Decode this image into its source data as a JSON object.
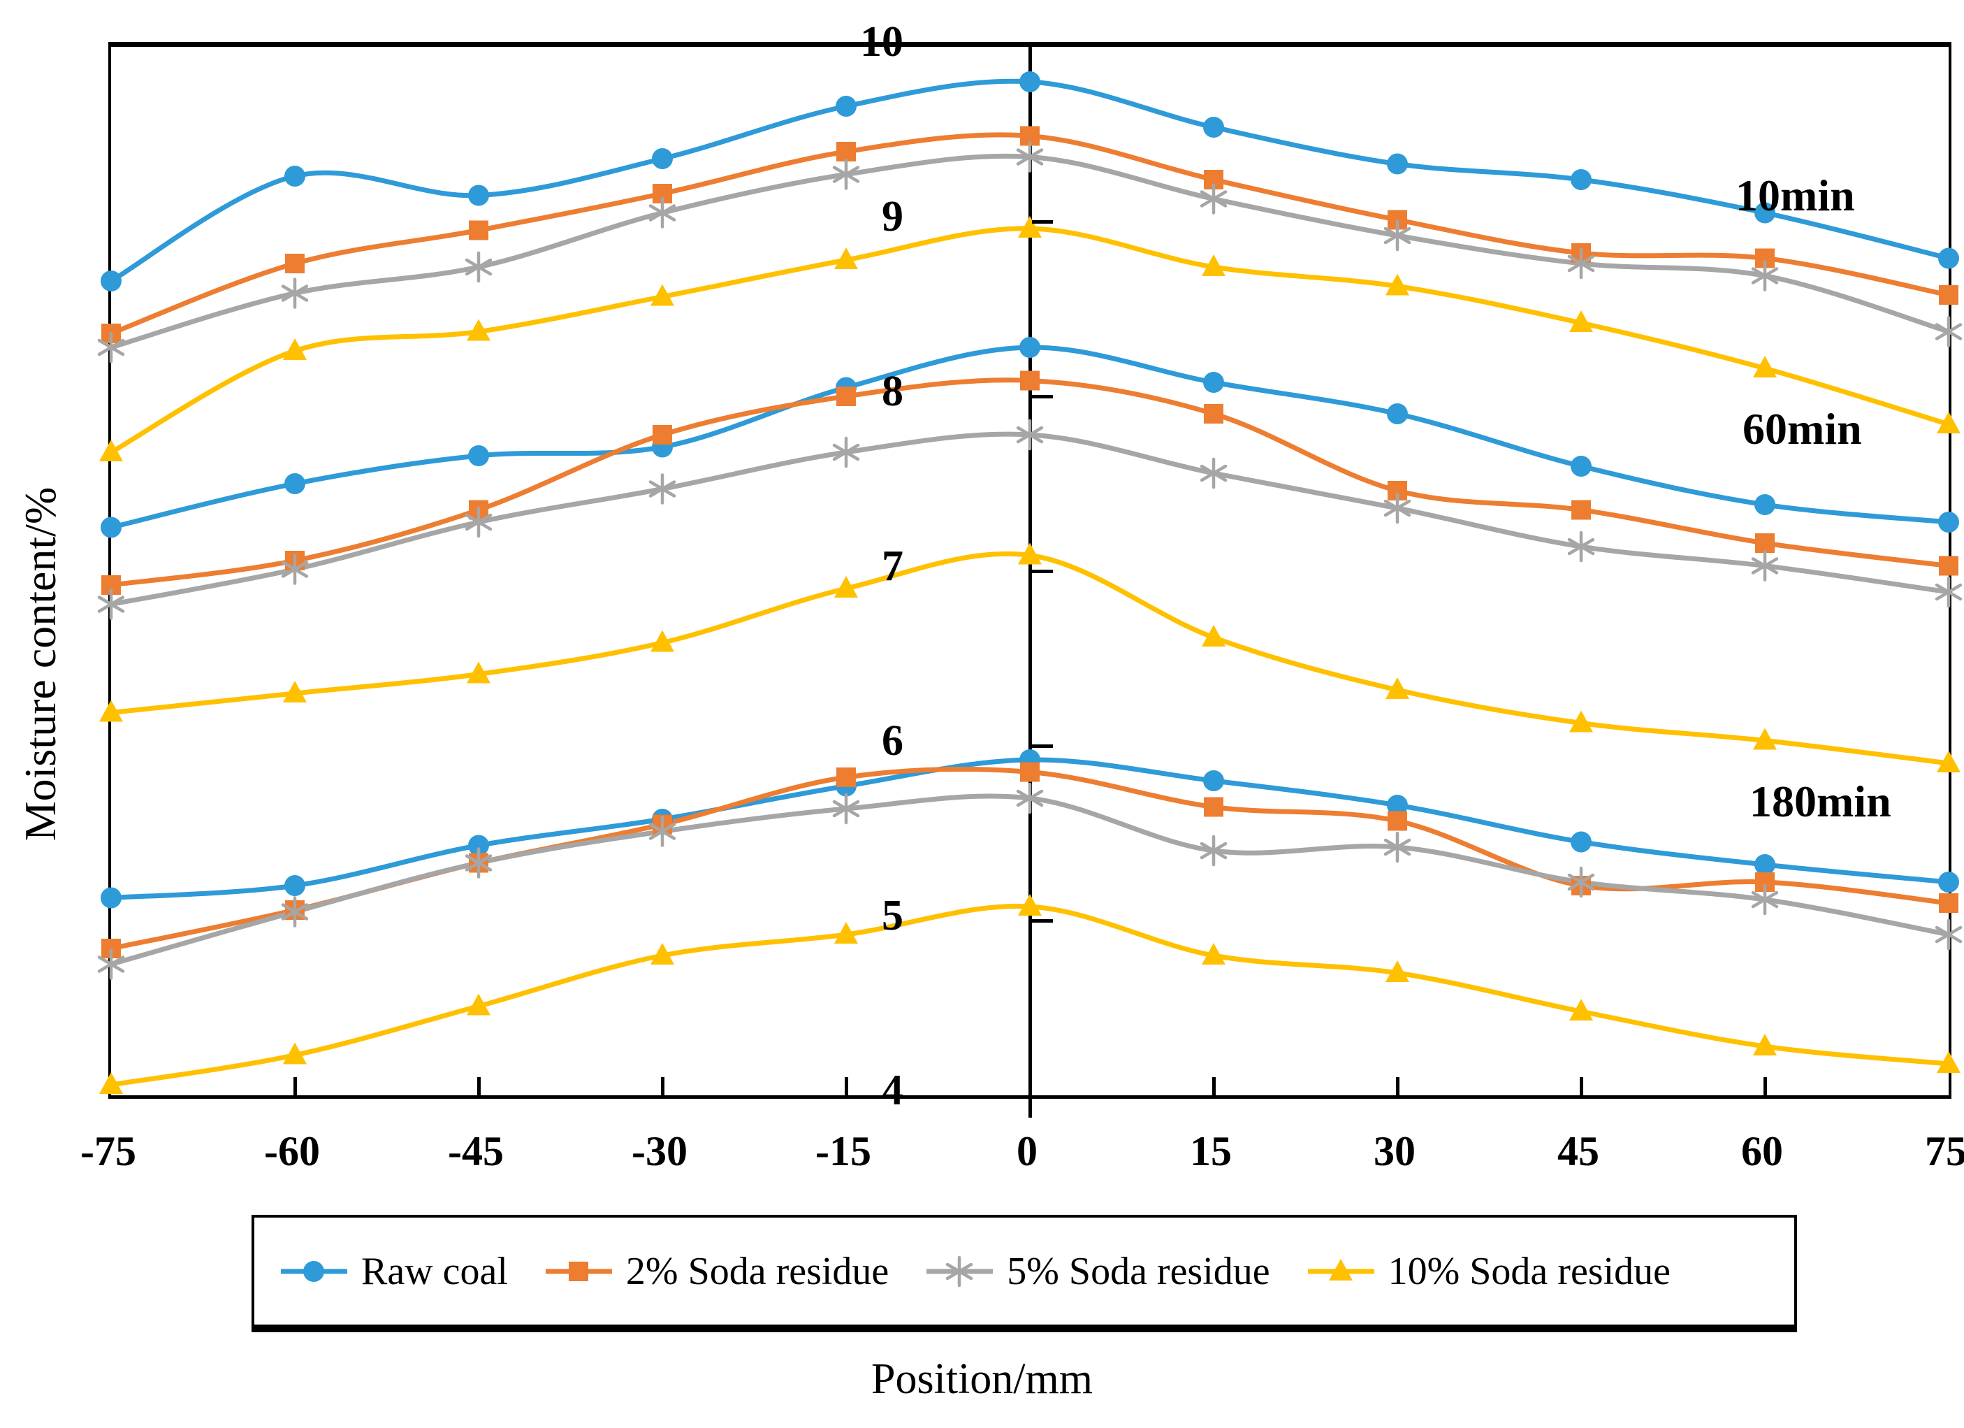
{
  "figure": {
    "background": "#ffffff"
  },
  "axes": {
    "y_tick_labels": [
      "10",
      "9",
      "8",
      "7",
      "6",
      "5",
      "4"
    ],
    "y_tick_values": [
      10,
      9,
      8,
      7,
      6,
      5,
      4
    ],
    "x_tick_labels": [
      "-75",
      "-60",
      "-45",
      "-30",
      "-15",
      "0",
      "15",
      "30",
      "45",
      "60",
      "75"
    ],
    "x_tick_values": [
      -75,
      -60,
      -45,
      -30,
      -15,
      0,
      15,
      30,
      45,
      60,
      75
    ]
  },
  "legend": [
    {
      "label": "Raw coal",
      "color": "#2e9ad8",
      "marker": "circle"
    },
    {
      "label": "2% Soda residue",
      "color": "#ed7d31",
      "marker": "square"
    },
    {
      "label": "5% Soda residue",
      "color": "#a6a6a6",
      "marker": "asterisk"
    },
    {
      "label": "10% Soda residue",
      "color": "#ffc000",
      "marker": "triangle"
    }
  ],
  "chart_data": {
    "type": "line",
    "xlabel": "Position/mm",
    "ylabel": "Moisture content/%",
    "xlim": [
      -75,
      75
    ],
    "ylim": [
      4,
      10
    ],
    "grid": false,
    "legend_position": "bottom",
    "x": [
      -75,
      -60,
      -45,
      -30,
      -15,
      0,
      15,
      30,
      45,
      60,
      75
    ],
    "groups": [
      {
        "label": "10min",
        "series": [
          {
            "name": "Raw coal",
            "color": "#2e9ad8",
            "marker": "circle",
            "values": [
              8.66,
              9.26,
              9.15,
              9.36,
              9.66,
              9.8,
              9.54,
              9.33,
              9.24,
              9.05,
              8.79
            ]
          },
          {
            "name": "2% Soda residue",
            "color": "#ed7d31",
            "marker": "square",
            "values": [
              8.36,
              8.76,
              8.95,
              9.16,
              9.4,
              9.49,
              9.24,
              9.01,
              8.82,
              8.79,
              8.58
            ]
          },
          {
            "name": "5% Soda residue",
            "color": "#a6a6a6",
            "marker": "asterisk",
            "values": [
              8.28,
              8.59,
              8.74,
              9.05,
              9.27,
              9.37,
              9.13,
              8.92,
              8.76,
              8.69,
              8.37
            ]
          },
          {
            "name": "10% Soda residue",
            "color": "#ffc000",
            "marker": "triangle",
            "values": [
              7.68,
              8.26,
              8.37,
              8.57,
              8.78,
              8.96,
              8.74,
              8.63,
              8.42,
              8.16,
              7.84
            ]
          }
        ]
      },
      {
        "label": "60min",
        "series": [
          {
            "name": "Raw coal",
            "color": "#2e9ad8",
            "marker": "circle",
            "values": [
              7.25,
              7.5,
              7.66,
              7.71,
              8.05,
              8.28,
              8.08,
              7.9,
              7.6,
              7.38,
              7.28
            ]
          },
          {
            "name": "2% Soda residue",
            "color": "#ed7d31",
            "marker": "square",
            "values": [
              6.92,
              7.06,
              7.35,
              7.78,
              8.0,
              8.09,
              7.9,
              7.46,
              7.35,
              7.16,
              7.03
            ]
          },
          {
            "name": "5% Soda residue",
            "color": "#a6a6a6",
            "marker": "asterisk",
            "values": [
              6.81,
              7.01,
              7.28,
              7.47,
              7.68,
              7.78,
              7.56,
              7.36,
              7.14,
              7.03,
              6.88
            ]
          },
          {
            "name": "10% Soda residue",
            "color": "#ffc000",
            "marker": "triangle",
            "values": [
              6.19,
              6.3,
              6.41,
              6.59,
              6.9,
              7.09,
              6.62,
              6.32,
              6.13,
              6.03,
              5.9
            ]
          }
        ]
      },
      {
        "label": "180min",
        "series": [
          {
            "name": "Raw coal",
            "color": "#2e9ad8",
            "marker": "circle",
            "values": [
              5.13,
              5.2,
              5.43,
              5.58,
              5.77,
              5.92,
              5.8,
              5.66,
              5.45,
              5.32,
              5.22
            ]
          },
          {
            "name": "2% Soda residue",
            "color": "#ed7d31",
            "marker": "square",
            "values": [
              4.84,
              5.06,
              5.33,
              5.55,
              5.82,
              5.85,
              5.65,
              5.57,
              5.2,
              5.22,
              5.1
            ]
          },
          {
            "name": "5% Soda residue",
            "color": "#a6a6a6",
            "marker": "asterisk",
            "values": [
              4.75,
              5.05,
              5.33,
              5.51,
              5.64,
              5.7,
              5.4,
              5.42,
              5.22,
              5.12,
              4.92
            ]
          },
          {
            "name": "10% Soda residue",
            "color": "#ffc000",
            "marker": "triangle",
            "values": [
              4.06,
              4.23,
              4.51,
              4.8,
              4.92,
              5.08,
              4.8,
              4.7,
              4.48,
              4.28,
              4.18
            ]
          }
        ]
      }
    ]
  }
}
